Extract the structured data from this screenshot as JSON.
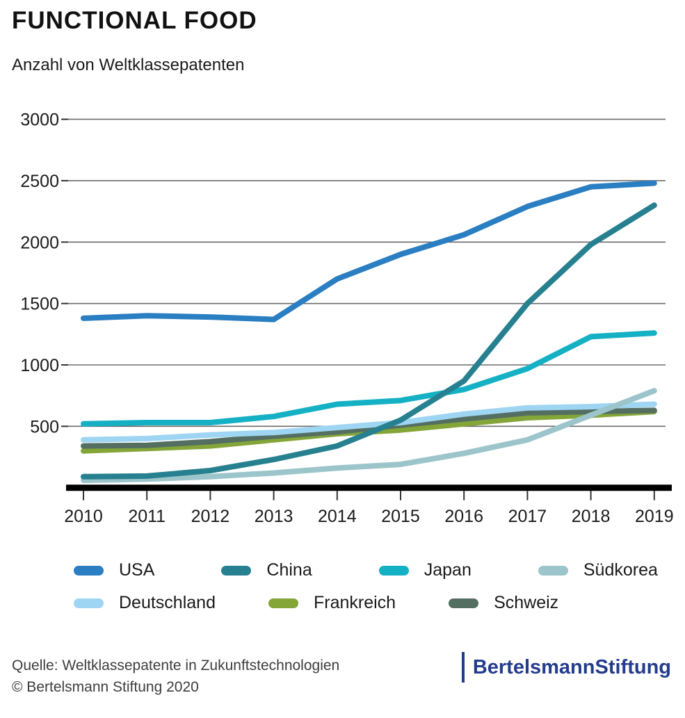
{
  "header": {
    "title": "FUNCTIONAL FOOD",
    "subtitle": "Anzahl von Weltklassepatenten"
  },
  "chart_data": {
    "type": "line",
    "title": "FUNCTIONAL FOOD",
    "subtitle": "Anzahl von Weltklassepatenten",
    "x": [
      "2010",
      "2011",
      "2012",
      "2013",
      "2014",
      "2015",
      "2016",
      "2017",
      "2018",
      "2019"
    ],
    "series": [
      {
        "name": "USA",
        "color": "#2a7ec2",
        "values": [
          1380,
          1400,
          1390,
          1370,
          1700,
          1900,
          2060,
          2290,
          2450,
          2480
        ]
      },
      {
        "name": "China",
        "color": "#26808f",
        "values": [
          90,
          95,
          140,
          230,
          340,
          550,
          870,
          1500,
          1980,
          2300
        ]
      },
      {
        "name": "Japan",
        "color": "#14b0c4",
        "values": [
          520,
          530,
          530,
          580,
          680,
          710,
          800,
          970,
          1230,
          1260
        ]
      },
      {
        "name": "Südkorea",
        "color": "#9cc5cb",
        "values": [
          60,
          70,
          90,
          120,
          160,
          190,
          280,
          390,
          590,
          790
        ]
      },
      {
        "name": "Deutschland",
        "color": "#9ed5f3",
        "values": [
          390,
          400,
          430,
          450,
          490,
          530,
          600,
          650,
          660,
          680
        ]
      },
      {
        "name": "Frankreich",
        "color": "#84a538",
        "values": [
          300,
          320,
          340,
          390,
          440,
          470,
          520,
          570,
          590,
          620
        ]
      },
      {
        "name": "Schweiz",
        "color": "#546f62",
        "values": [
          340,
          345,
          375,
          420,
          455,
          510,
          560,
          610,
          620,
          630
        ]
      }
    ],
    "ylim": [
      0,
      3000
    ],
    "yticks": [
      500,
      1000,
      1500,
      2000,
      2500,
      3000
    ],
    "grid": true,
    "legend_position": "bottom",
    "axis_color": "#000000",
    "gridline_color": "#6b6b6b"
  },
  "footer": {
    "source_line1": "Quelle: Weltklassepatente in Zukunftstechnologien",
    "source_line2": "© Bertelsmann Stiftung 2020",
    "logo_regular": "Bertelsmann",
    "logo_bold": "Stiftung",
    "logo_color": "#243c8c"
  }
}
